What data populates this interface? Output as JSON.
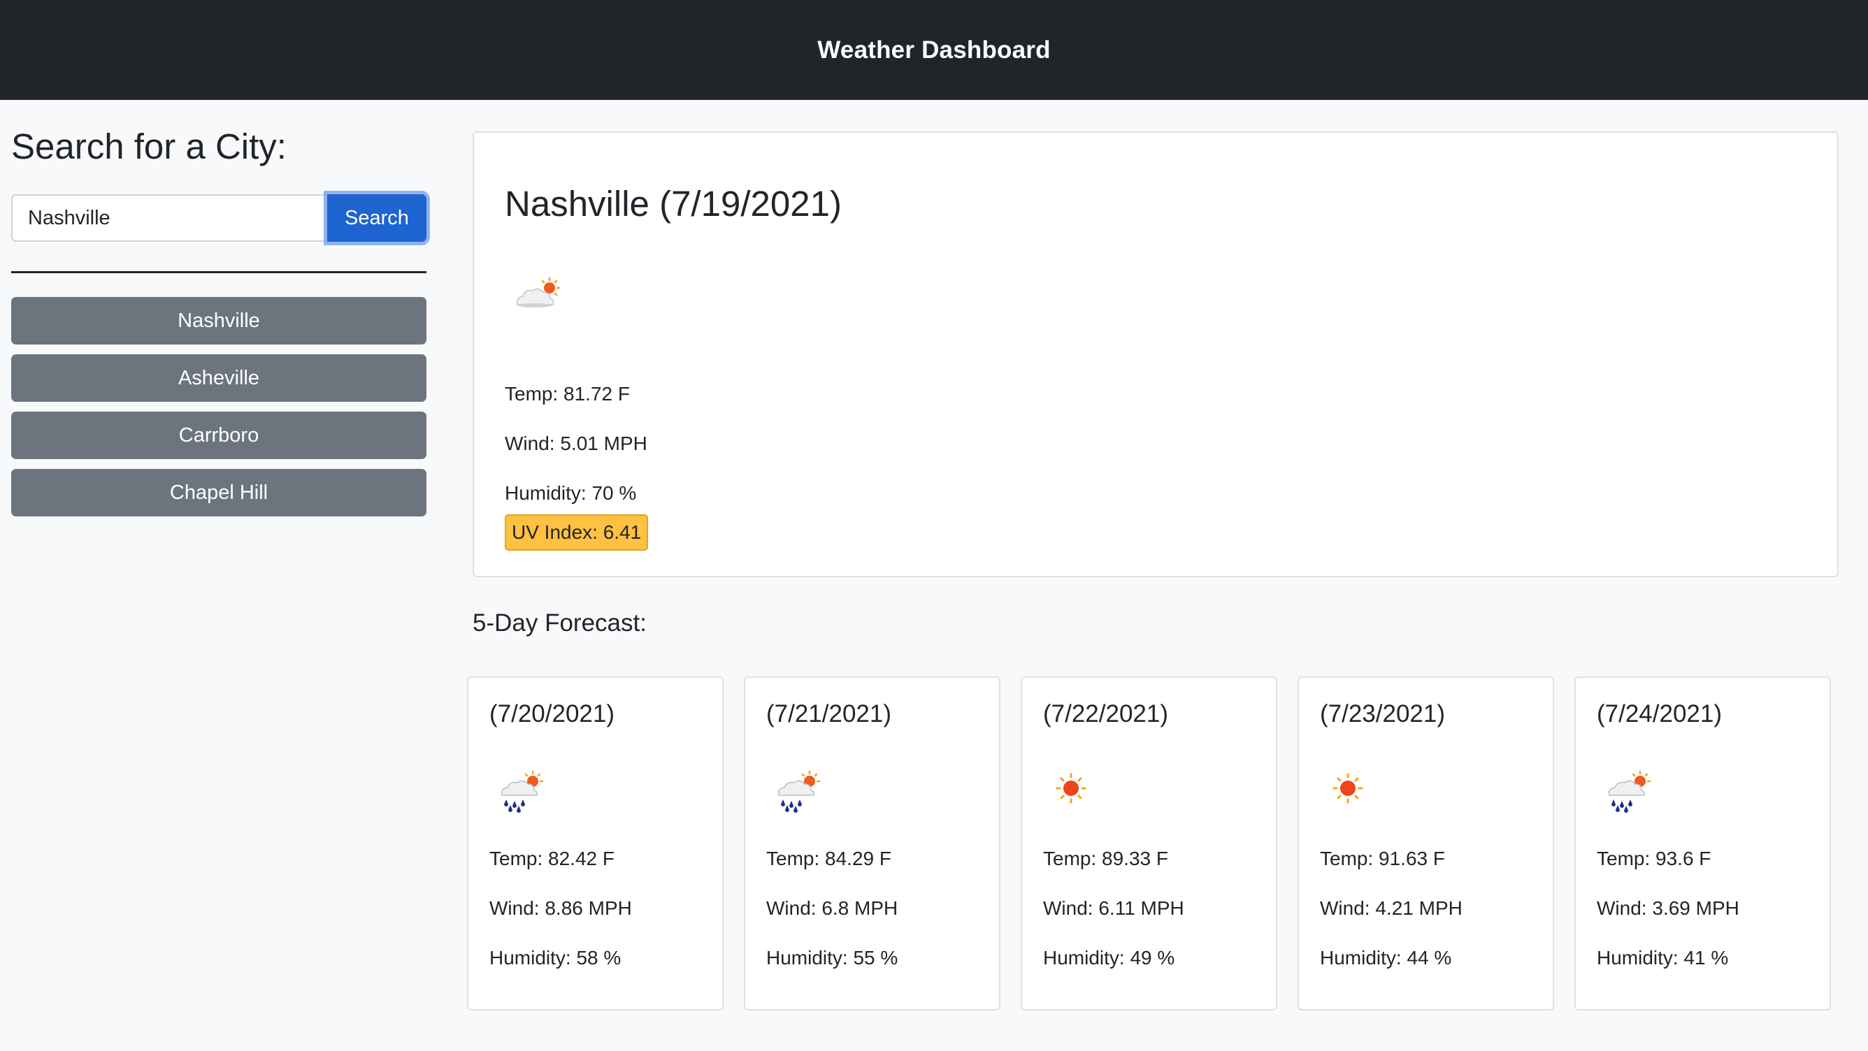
{
  "header": {
    "title": "Weather Dashboard"
  },
  "sidebar": {
    "heading": "Search for a City:",
    "search": {
      "value": "Nashville",
      "button_label": "Search"
    },
    "history": [
      "Nashville",
      "Asheville",
      "Carrboro",
      "Chapel Hill"
    ]
  },
  "current": {
    "title": "Nashville (7/19/2021)",
    "icon": "cloud-sun-icon",
    "temp": "Temp: 81.72 F",
    "wind": "Wind: 5.01 MPH",
    "humidity": "Humidity: 70 %",
    "uv": "UV Index: 6.41",
    "uv_color": "#ffc13f"
  },
  "forecast": {
    "heading": "5-Day Forecast:",
    "days": [
      {
        "date": "(7/20/2021)",
        "icon": "rain-sun-icon",
        "temp": "Temp: 82.42 F",
        "wind": "Wind: 8.86 MPH",
        "humidity": "Humidity: 58 %"
      },
      {
        "date": "(7/21/2021)",
        "icon": "rain-sun-icon",
        "temp": "Temp: 84.29 F",
        "wind": "Wind: 6.8 MPH",
        "humidity": "Humidity: 55 %"
      },
      {
        "date": "(7/22/2021)",
        "icon": "sun-icon",
        "temp": "Temp: 89.33 F",
        "wind": "Wind: 6.11 MPH",
        "humidity": "Humidity: 49 %"
      },
      {
        "date": "(7/23/2021)",
        "icon": "sun-icon",
        "temp": "Temp: 91.63 F",
        "wind": "Wind: 4.21 MPH",
        "humidity": "Humidity: 44 %"
      },
      {
        "date": "(7/24/2021)",
        "icon": "rain-sun-icon",
        "temp": "Temp: 93.6 F",
        "wind": "Wind: 3.69 MPH",
        "humidity": "Humidity: 41 %"
      }
    ]
  },
  "colors": {
    "header_bg": "#212529",
    "search_button": "#1e64d0",
    "history_button": "#6c757d",
    "page_bg": "#f8f9fa"
  }
}
